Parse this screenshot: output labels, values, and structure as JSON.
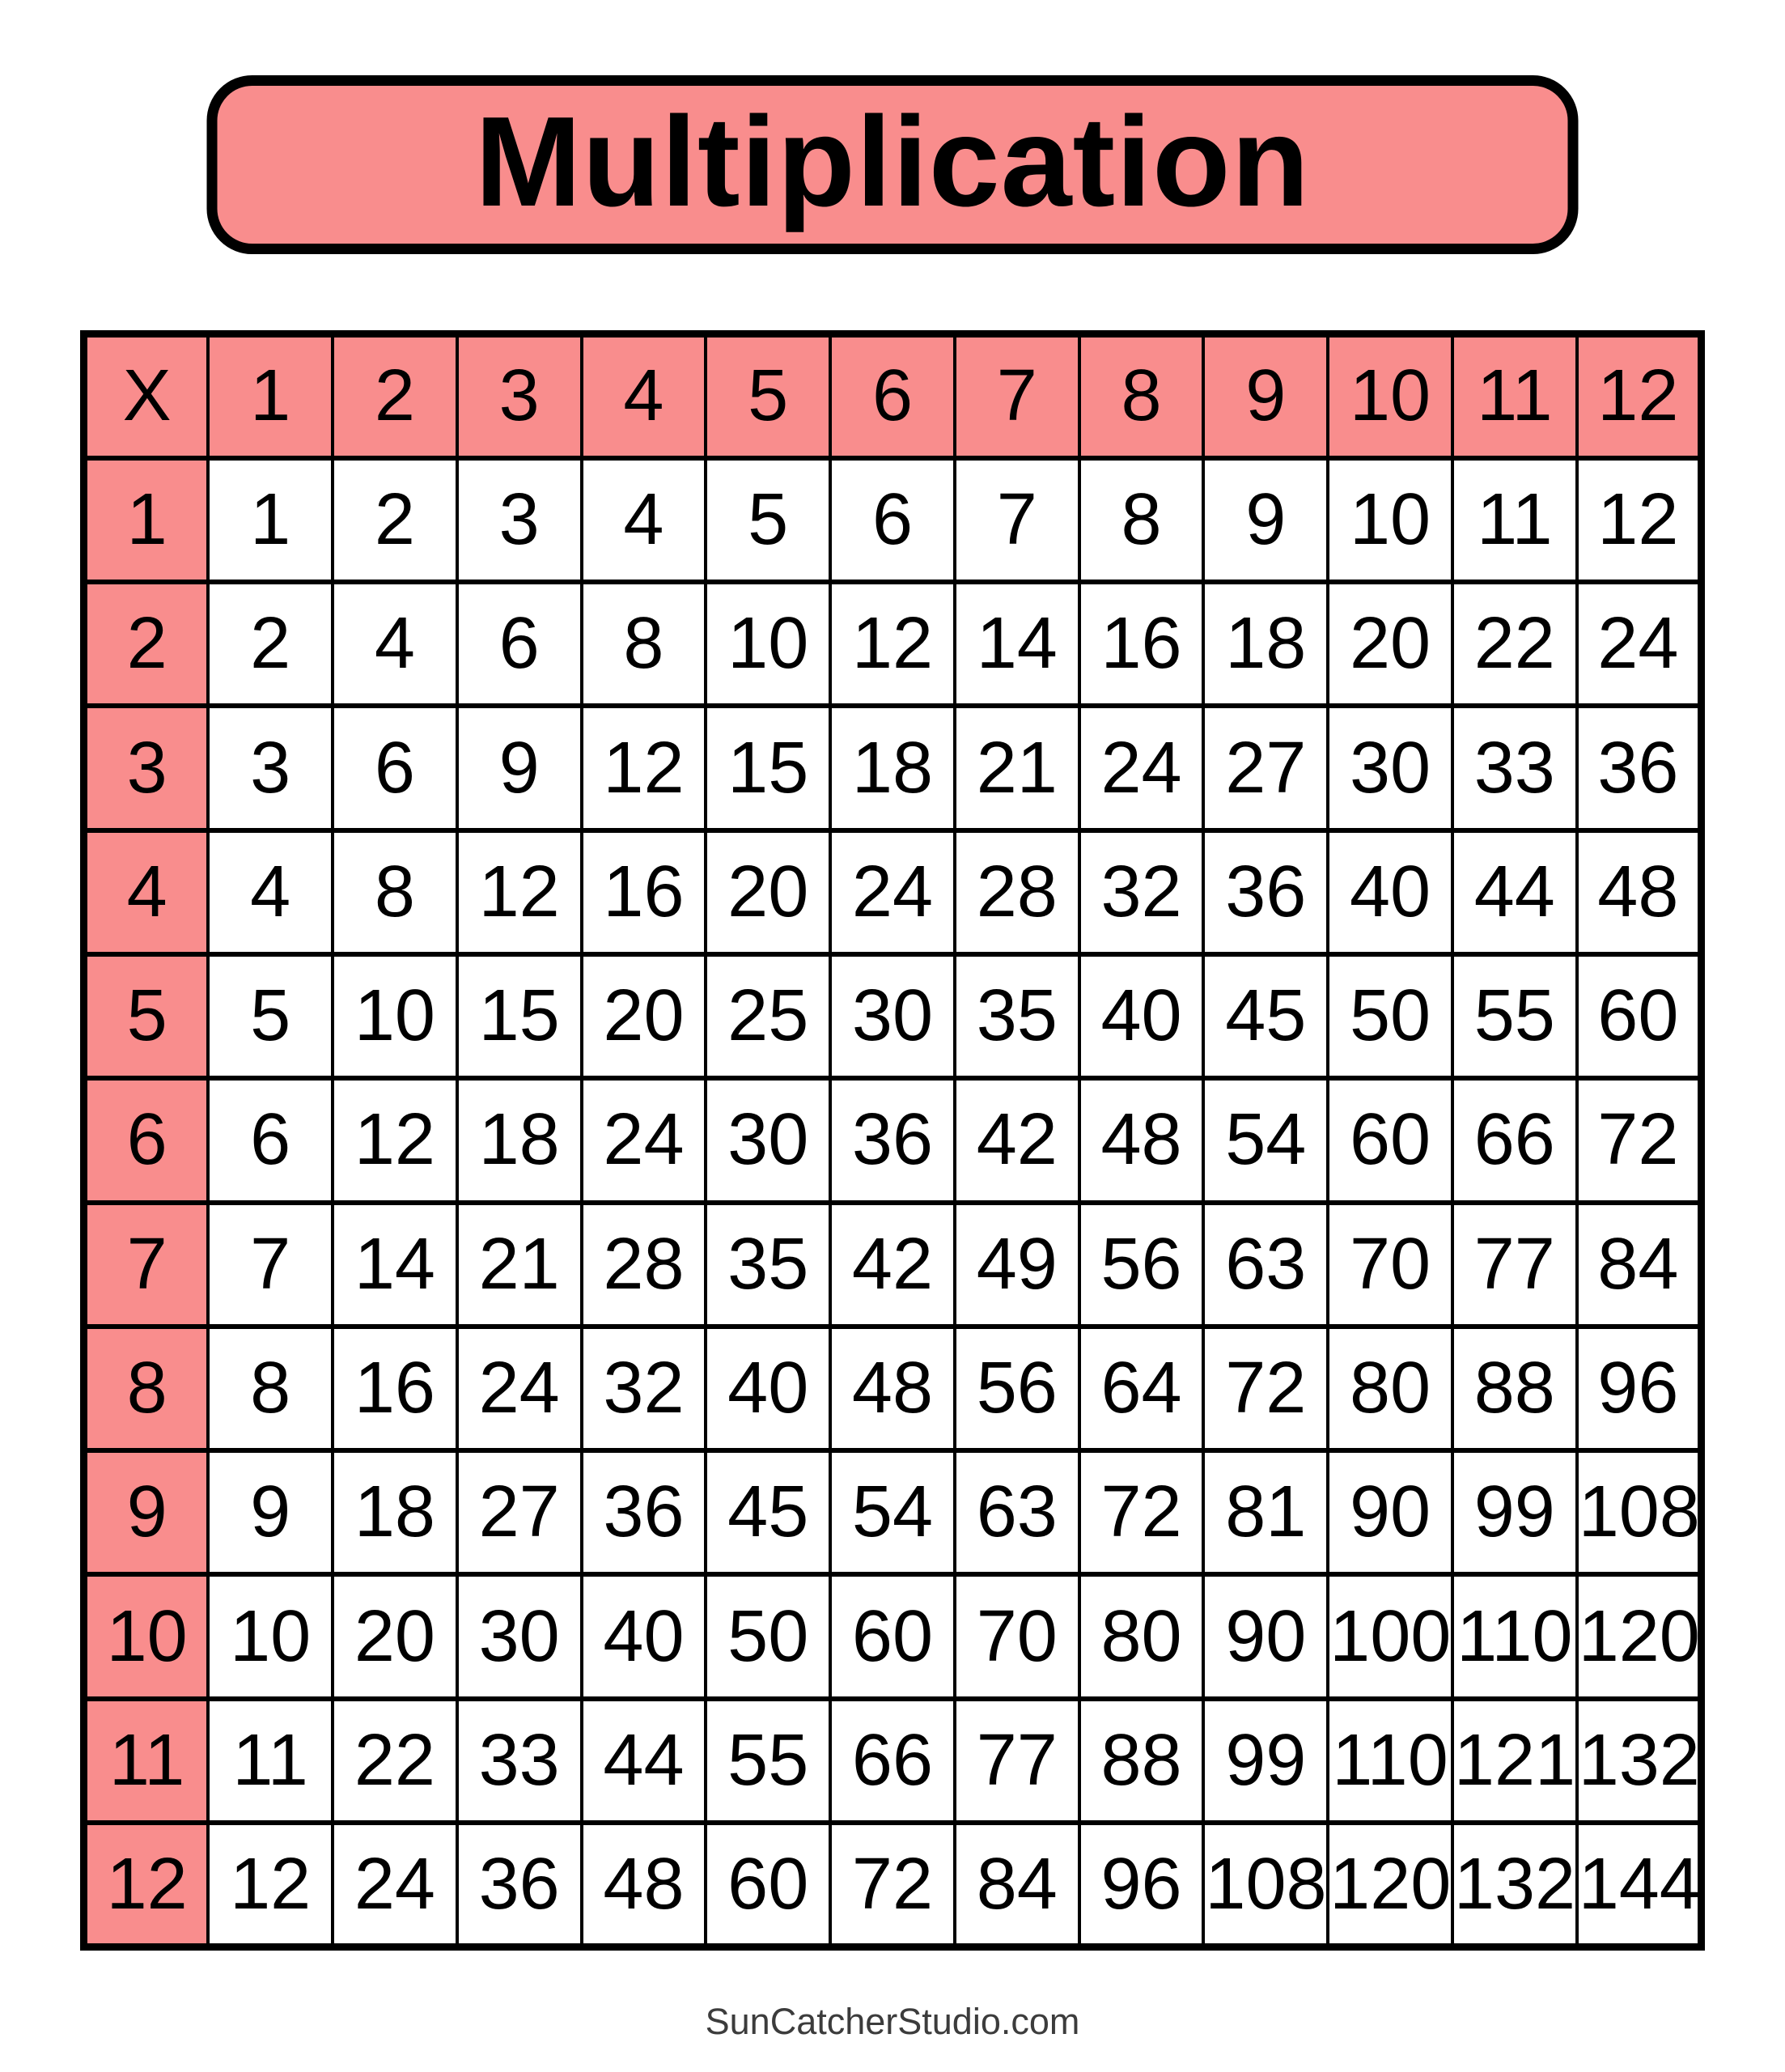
{
  "title_banner": {
    "text": "Multiplication"
  },
  "footer": {
    "text": "SunCatcherStudio.com"
  },
  "colors": {
    "accent_pink": "#f98d8d",
    "grid_line": "#000000",
    "cell_background": "#ffffff",
    "footer_text": "#3c3c3c"
  },
  "chart_data": {
    "type": "table",
    "title": "Multiplication",
    "corner_label": "X",
    "column_headers": [
      "1",
      "2",
      "3",
      "4",
      "5",
      "6",
      "7",
      "8",
      "9",
      "10",
      "11",
      "12"
    ],
    "row_headers": [
      "1",
      "2",
      "3",
      "4",
      "5",
      "6",
      "7",
      "8",
      "9",
      "10",
      "11",
      "12"
    ],
    "rows": [
      [
        1,
        2,
        3,
        4,
        5,
        6,
        7,
        8,
        9,
        10,
        11,
        12
      ],
      [
        2,
        4,
        6,
        8,
        10,
        12,
        14,
        16,
        18,
        20,
        22,
        24
      ],
      [
        3,
        6,
        9,
        12,
        15,
        18,
        21,
        24,
        27,
        30,
        33,
        36
      ],
      [
        4,
        8,
        12,
        16,
        20,
        24,
        28,
        32,
        36,
        40,
        44,
        48
      ],
      [
        5,
        10,
        15,
        20,
        25,
        30,
        35,
        40,
        45,
        50,
        55,
        60
      ],
      [
        6,
        12,
        18,
        24,
        30,
        36,
        42,
        48,
        54,
        60,
        66,
        72
      ],
      [
        7,
        14,
        21,
        28,
        35,
        42,
        49,
        56,
        63,
        70,
        77,
        84
      ],
      [
        8,
        16,
        24,
        32,
        40,
        48,
        56,
        64,
        72,
        80,
        88,
        96
      ],
      [
        9,
        18,
        27,
        36,
        45,
        54,
        63,
        72,
        81,
        90,
        99,
        108
      ],
      [
        10,
        20,
        30,
        40,
        50,
        60,
        70,
        80,
        90,
        100,
        110,
        120
      ],
      [
        11,
        22,
        33,
        44,
        55,
        66,
        77,
        88,
        99,
        110,
        121,
        132
      ],
      [
        12,
        24,
        36,
        48,
        60,
        72,
        84,
        96,
        108,
        120,
        132,
        144
      ]
    ]
  }
}
